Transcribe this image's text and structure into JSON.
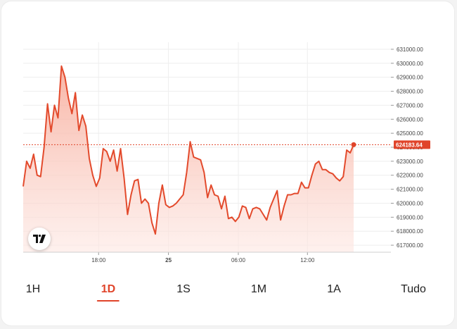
{
  "colors": {
    "accent": "#e0442a",
    "line": "#e34a2c",
    "fill_top": "#f9b8a8",
    "grid": "#eeeeee"
  },
  "logo": {
    "icon": "tradingview-logo-icon"
  },
  "chart_data": {
    "type": "area",
    "ylim": [
      616500,
      631500
    ],
    "yticks": [
      631000,
      630000,
      629000,
      628000,
      627000,
      626000,
      625000,
      624000,
      623000,
      622000,
      621000,
      620000,
      619000,
      618000,
      617000
    ],
    "ytick_labels": [
      "631000.00",
      "630000.00",
      "629000.00",
      "628000.00",
      "627000.00",
      "626000.00",
      "625000.00",
      "624000.00",
      "623000.00",
      "622000.00",
      "621000.00",
      "620000.00",
      "619000.00",
      "618000.00",
      "617000.00"
    ],
    "xticks": [
      {
        "label": "18:00",
        "bold": false,
        "pos": 0.205
      },
      {
        "label": "25",
        "bold": true,
        "pos": 0.395
      },
      {
        "label": "06:00",
        "bold": false,
        "pos": 0.585
      },
      {
        "label": "12:00",
        "bold": false,
        "pos": 0.773
      }
    ],
    "last_value": 624183.64,
    "last_label": "624183.64",
    "values": [
      621200,
      623000,
      622500,
      623500,
      622000,
      621900,
      624000,
      627100,
      625100,
      627000,
      626100,
      629800,
      629000,
      627500,
      626400,
      627900,
      625200,
      626300,
      625500,
      623200,
      622000,
      621200,
      621800,
      623900,
      623700,
      623000,
      623800,
      622300,
      623900,
      621800,
      619200,
      620600,
      621600,
      621700,
      620000,
      620300,
      620000,
      618600,
      617800,
      620000,
      621300,
      619900,
      619700,
      619800,
      620000,
      620300,
      620600,
      622200,
      624400,
      623300,
      623200,
      623100,
      622200,
      620400,
      621300,
      620600,
      620500,
      619600,
      620500,
      618900,
      619000,
      618700,
      619000,
      619800,
      619700,
      618900,
      619600,
      619700,
      619600,
      619200,
      618800,
      619700,
      620300,
      620900,
      618800,
      619800,
      620600,
      620600,
      620700,
      620700,
      621500,
      621100,
      621100,
      622000,
      622800,
      623000,
      622400,
      622400,
      622200,
      622100,
      621800,
      621600,
      621900,
      623800,
      623600,
      624183.64
    ]
  },
  "tabs": [
    {
      "label": "1H",
      "active": false
    },
    {
      "label": "1D",
      "active": true
    },
    {
      "label": "1S",
      "active": false
    },
    {
      "label": "1M",
      "active": false
    },
    {
      "label": "1A",
      "active": false
    },
    {
      "label": "Tudo",
      "active": false
    }
  ]
}
